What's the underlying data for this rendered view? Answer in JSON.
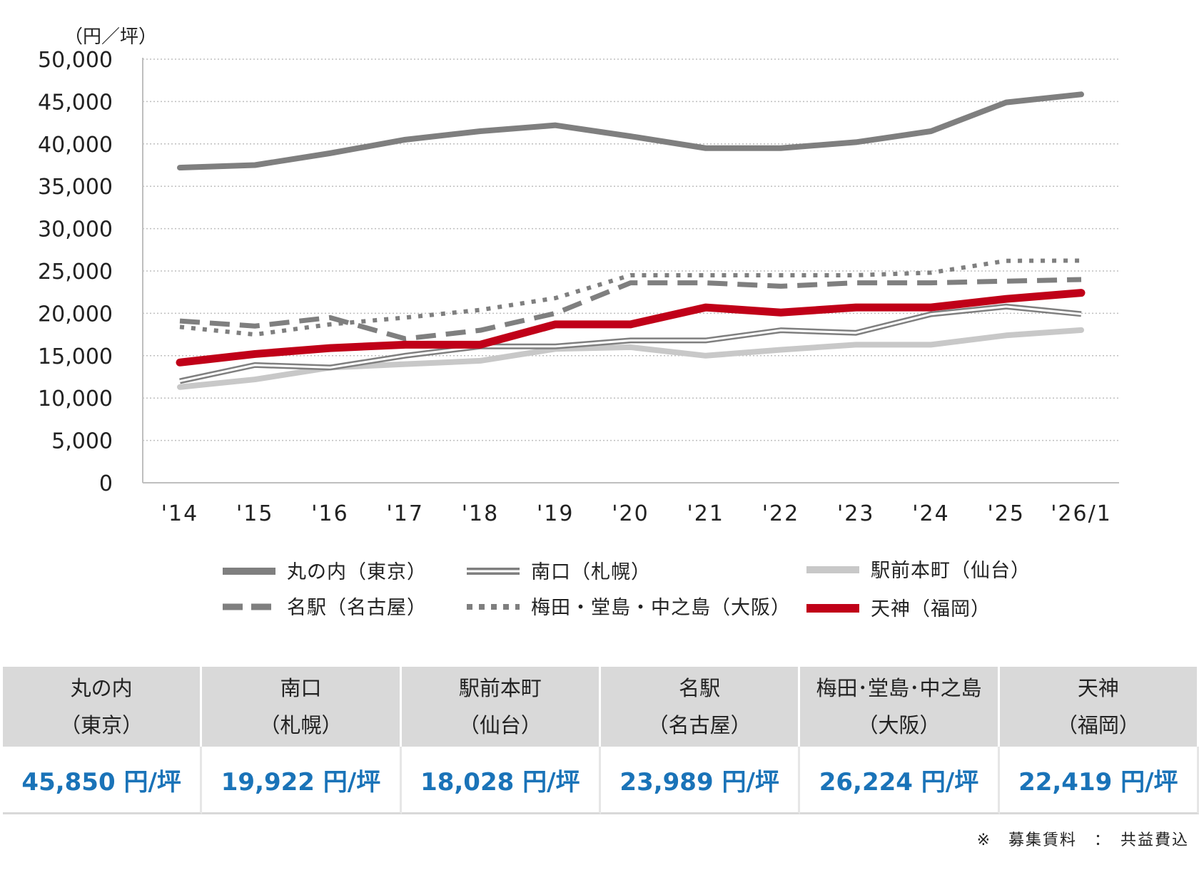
{
  "chart_data": {
    "type": "line",
    "unit_label": "（円／坪）",
    "categories": [
      "'14",
      "'15",
      "'16",
      "'17",
      "'18",
      "'19",
      "'20",
      "'21",
      "'22",
      "'23",
      "'24",
      "'25",
      "'26/1"
    ],
    "ylim": [
      0,
      50000
    ],
    "yticks": [
      0,
      5000,
      10000,
      15000,
      20000,
      25000,
      30000,
      35000,
      40000,
      45000,
      50000
    ],
    "ytick_labels": [
      "0",
      "5,000",
      "10,000",
      "15,000",
      "20,000",
      "25,000",
      "30,000",
      "35,000",
      "40,000",
      "45,000",
      "50,000"
    ],
    "grid": true,
    "series": [
      {
        "name": "丸の内（東京）",
        "style": "solid-thick",
        "color": "#7f7f7f",
        "values": [
          37200,
          37500,
          38900,
          40500,
          41500,
          42200,
          40900,
          39500,
          39500,
          40200,
          41500,
          44900,
          45850
        ]
      },
      {
        "name": "南口（札幌）",
        "style": "double",
        "color": "#7f7f7f",
        "values": [
          12000,
          13900,
          13600,
          15000,
          16100,
          16100,
          16800,
          16800,
          18000,
          17700,
          19900,
          20800,
          19922
        ]
      },
      {
        "name": "駅前本町（仙台）",
        "style": "solid-light",
        "color": "#c8c8c8",
        "values": [
          11300,
          12200,
          13600,
          14000,
          14400,
          15800,
          16000,
          15000,
          15700,
          16300,
          16300,
          17400,
          18028
        ]
      },
      {
        "name": "名駅（名古屋）",
        "style": "dashed",
        "color": "#7f7f7f",
        "values": [
          19100,
          18500,
          19500,
          17000,
          18000,
          20000,
          23600,
          23600,
          23200,
          23600,
          23600,
          23800,
          23989
        ]
      },
      {
        "name": "梅田・堂島・中之島（大阪）",
        "style": "dotted",
        "color": "#7f7f7f",
        "values": [
          18400,
          17500,
          18700,
          19500,
          20400,
          21800,
          24500,
          24500,
          24500,
          24500,
          24800,
          26200,
          26224
        ]
      },
      {
        "name": "天神（福岡）",
        "style": "solid-red",
        "color": "#c00018",
        "values": [
          14200,
          15200,
          15900,
          16300,
          16300,
          18700,
          18700,
          20700,
          20100,
          20700,
          20700,
          21700,
          22419
        ]
      }
    ]
  },
  "table": {
    "columns": [
      {
        "name_line1": "丸の内",
        "name_line2": "（東京）",
        "value": "45,850 円/坪"
      },
      {
        "name_line1": "南口",
        "name_line2": "（札幌）",
        "value": "19,922 円/坪"
      },
      {
        "name_line1": "駅前本町",
        "name_line2": "（仙台）",
        "value": "18,028 円/坪"
      },
      {
        "name_line1": "名駅",
        "name_line2": "（名古屋）",
        "value": "23,989 円/坪"
      },
      {
        "name_line1": "梅田･堂島･中之島",
        "name_line2": "（大阪）",
        "value": "26,224 円/坪"
      },
      {
        "name_line1": "天神",
        "name_line2": "（福岡）",
        "value": "22,419 円/坪"
      }
    ]
  },
  "note": "※　募集賃料　：　共益費込"
}
